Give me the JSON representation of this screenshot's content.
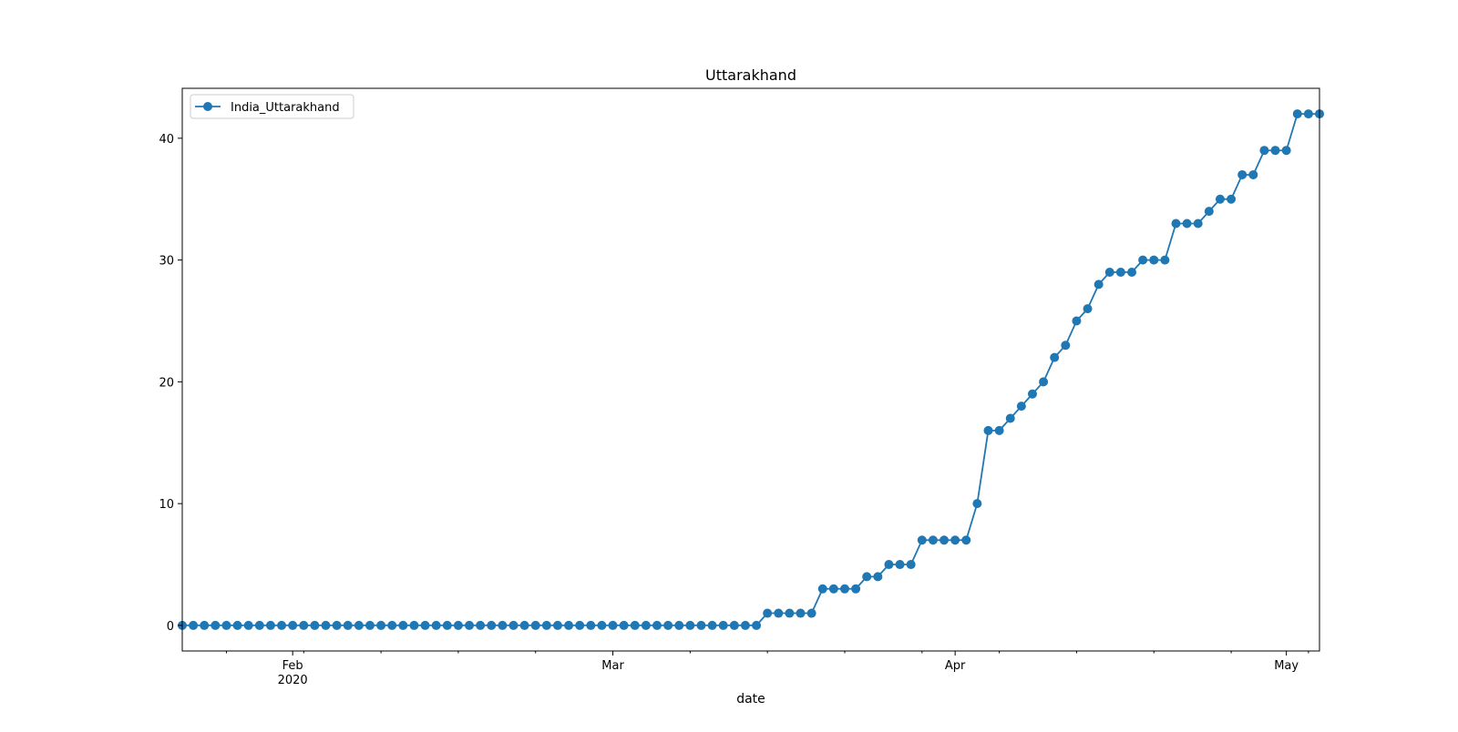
{
  "chart_data": {
    "type": "line",
    "title": "Uttarakhand",
    "xlabel": "date",
    "ylabel": "",
    "x_start": "2020-01-22",
    "x_end": "2020-05-04",
    "xlim": [
      "2020-01-22",
      "2020-05-04"
    ],
    "ylim": [
      -2.1,
      44.1
    ],
    "y_ticks": [
      0,
      10,
      20,
      30,
      40
    ],
    "x_major_ticks": [
      {
        "date": "2020-02-01",
        "label": "Feb",
        "sublabel": "2020"
      },
      {
        "date": "2020-03-01",
        "label": "Mar",
        "sublabel": ""
      },
      {
        "date": "2020-04-01",
        "label": "Apr",
        "sublabel": ""
      },
      {
        "date": "2020-05-01",
        "label": "May",
        "sublabel": ""
      }
    ],
    "grid": false,
    "legend_position": "top-left",
    "series": [
      {
        "name": "India_Uttarakhand",
        "color": "#1f77b4",
        "marker": "circle",
        "values": [
          0,
          0,
          0,
          0,
          0,
          0,
          0,
          0,
          0,
          0,
          0,
          0,
          0,
          0,
          0,
          0,
          0,
          0,
          0,
          0,
          0,
          0,
          0,
          0,
          0,
          0,
          0,
          0,
          0,
          0,
          0,
          0,
          0,
          0,
          0,
          0,
          0,
          0,
          0,
          0,
          0,
          0,
          0,
          0,
          0,
          0,
          0,
          0,
          0,
          0,
          0,
          0,
          0,
          1,
          1,
          1,
          1,
          1,
          3,
          3,
          3,
          3,
          4,
          4,
          5,
          5,
          5,
          7,
          7,
          7,
          7,
          7,
          10,
          16,
          16,
          17,
          18,
          19,
          20,
          22,
          23,
          25,
          26,
          28,
          29,
          29,
          29,
          30,
          30,
          30,
          33,
          33,
          33,
          34,
          35,
          35,
          37,
          37,
          39,
          39,
          39,
          42,
          42,
          42
        ]
      }
    ]
  }
}
